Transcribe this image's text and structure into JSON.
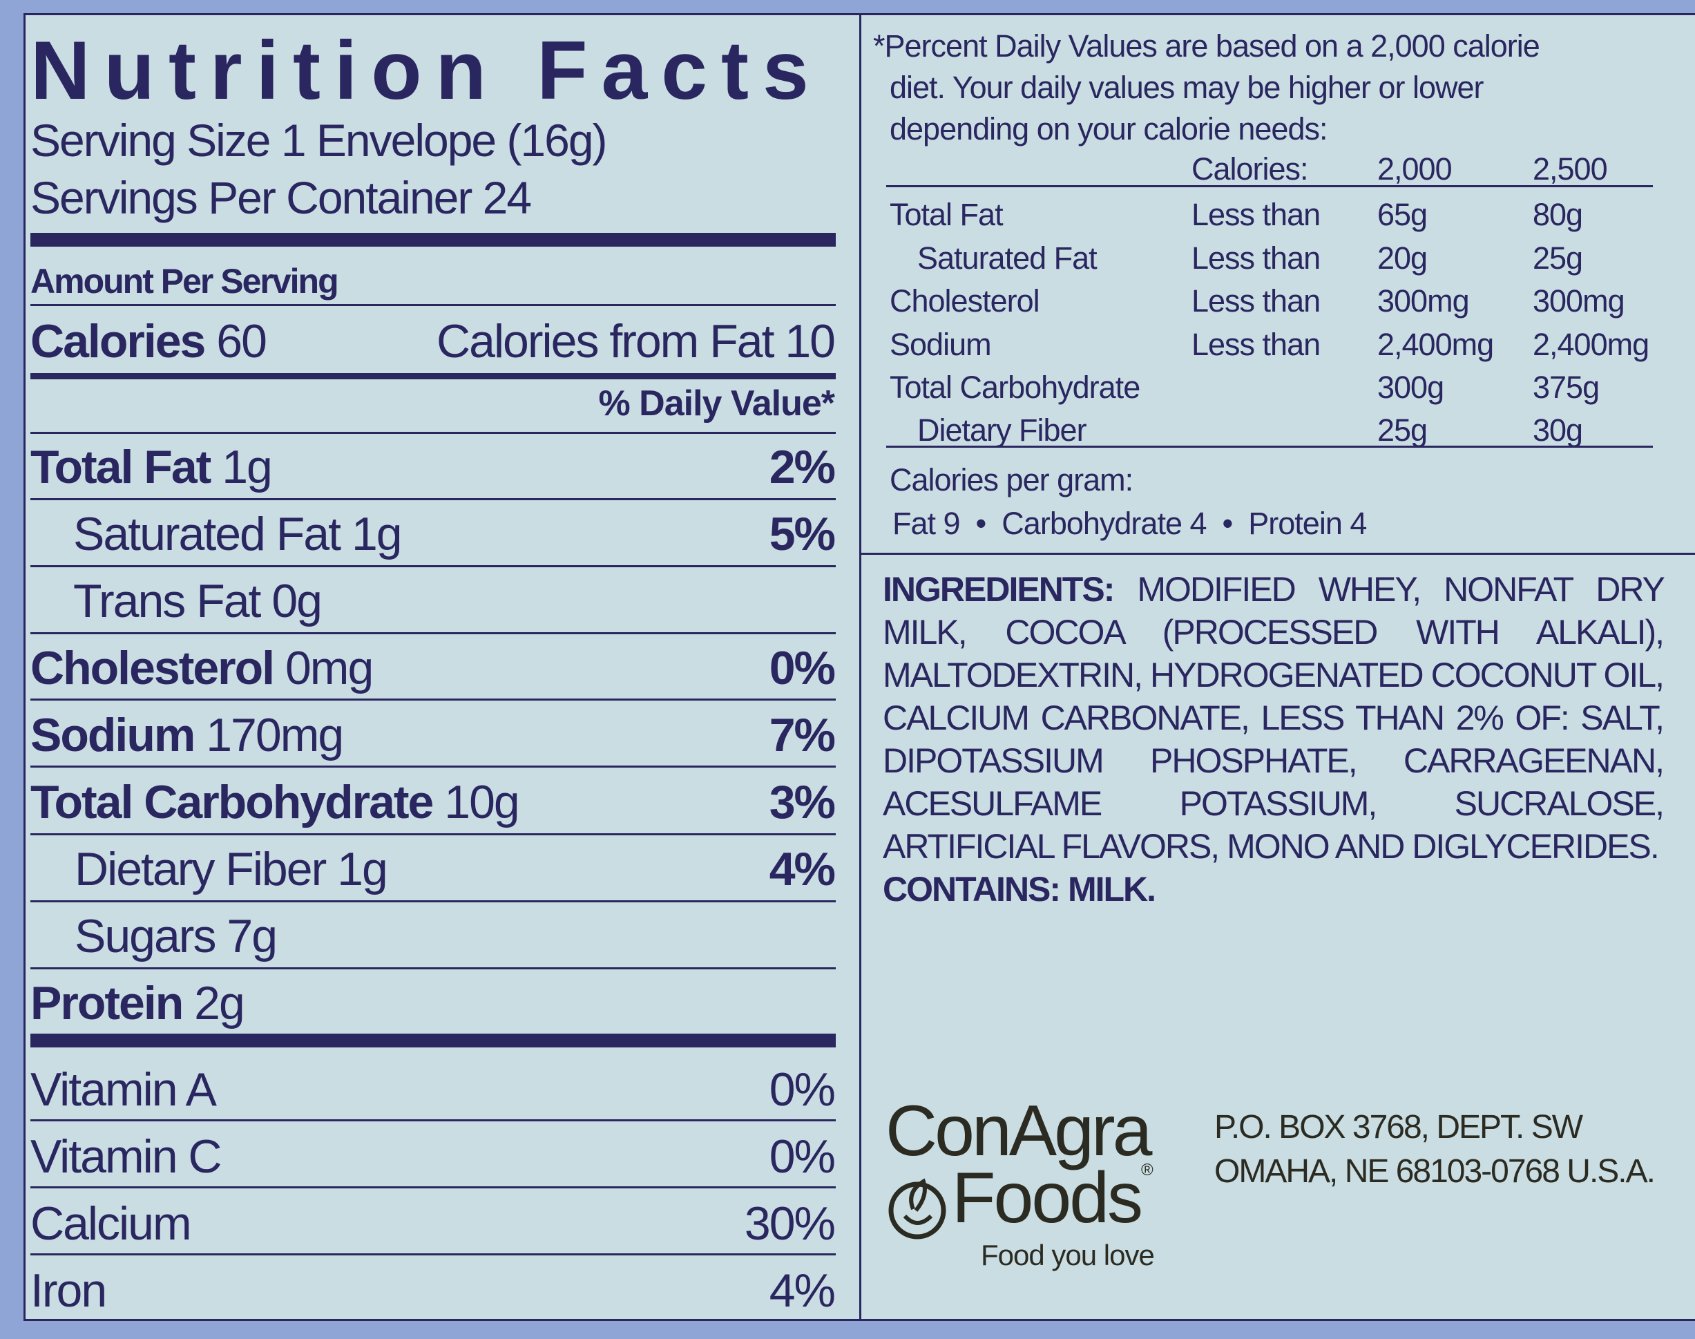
{
  "colors": {
    "ink": "#2a2660",
    "panel": "#c9dde2",
    "outer": "#8ea5d6",
    "logo": "#2b2b22"
  },
  "facts": {
    "title": "Nutrition Facts",
    "serving_size": "Serving Size 1 Envelope (16g)",
    "servings_per_container": "Servings Per Container 24",
    "amount_per_serving": "Amount Per Serving",
    "calories_label": "Calories",
    "calories_value": "60",
    "calories_from_fat": "Calories from Fat 10",
    "dv_header": "% Daily Value*",
    "nutrients": [
      {
        "name": "Total Fat",
        "amount": "1g",
        "dv": "2%"
      },
      {
        "name": "Saturated Fat",
        "amount": "1g",
        "dv": "5%"
      },
      {
        "name": "Trans Fat",
        "amount": "0g",
        "dv": ""
      },
      {
        "name": "Cholesterol",
        "amount": "0mg",
        "dv": "0%"
      },
      {
        "name": "Sodium",
        "amount": "170mg",
        "dv": "7%"
      },
      {
        "name": "Total Carbohydrate",
        "amount": "10g",
        "dv": "3%"
      },
      {
        "name": "Dietary Fiber",
        "amount": "1g",
        "dv": "4%"
      },
      {
        "name": "Sugars",
        "amount": "7g",
        "dv": ""
      },
      {
        "name": "Protein",
        "amount": "2g",
        "dv": ""
      }
    ],
    "vitamins": [
      {
        "name": "Vitamin A",
        "dv": "0%"
      },
      {
        "name": "Vitamin C",
        "dv": "0%"
      },
      {
        "name": "Calcium",
        "dv": "30%"
      },
      {
        "name": "Iron",
        "dv": "4%"
      }
    ]
  },
  "footnote": {
    "lines": [
      "*Percent Daily Values are based on a 2,000 calorie",
      "diet. Your daily values may be higher or lower",
      "depending on your calorie needs:"
    ],
    "header": {
      "label": "Calories:",
      "col1": "2,000",
      "col2": "2,500"
    },
    "rows": [
      {
        "name": "Total Fat",
        "qual": "Less than",
        "col1": "65g",
        "col2": "80g"
      },
      {
        "name": "Saturated Fat",
        "qual": "Less than",
        "col1": "20g",
        "col2": "25g"
      },
      {
        "name": "Cholesterol",
        "qual": "Less than",
        "col1": "300mg",
        "col2": "300mg"
      },
      {
        "name": "Sodium",
        "qual": "Less than",
        "col1": "2,400mg",
        "col2": "2,400mg"
      },
      {
        "name": "Total Carbohydrate",
        "qual": "",
        "col1": "300g",
        "col2": "375g"
      },
      {
        "name": "Dietary Fiber",
        "qual": "",
        "col1": "25g",
        "col2": "30g"
      }
    ],
    "cal_per_gram": "Calories per gram:",
    "cal_per_gram_values": "Fat 9  •  Carbohydrate 4  •  Protein 4"
  },
  "ingredients": {
    "label": "INGREDIENTS:",
    "lines": [
      "MODIFIED WHEY, NONFAT DRY",
      "MILK, COCOA (PROCESSED WITH ALKALI),",
      "MALTODEXTRIN, HYDROGENATED COCONUT OIL,",
      "CALCIUM CARBONATE, LESS THAN 2% OF: SALT,",
      "DIPOTASSIUM PHOSPHATE, CARRAGEENAN,",
      "ACESULFAME POTASSIUM, SUCRALOSE,",
      "ARTIFICIAL FLAVORS, MONO AND DIGLYCERIDES."
    ],
    "contains": "CONTAINS: MILK."
  },
  "brand": {
    "line1": "ConAgra",
    "line2": "Foods",
    "registered": "®",
    "tagline": "Food you love"
  },
  "address": {
    "line1": "P.O. BOX 3768, DEPT. SW",
    "line2": "OMAHA, NE 68103-0768 U.S.A."
  }
}
